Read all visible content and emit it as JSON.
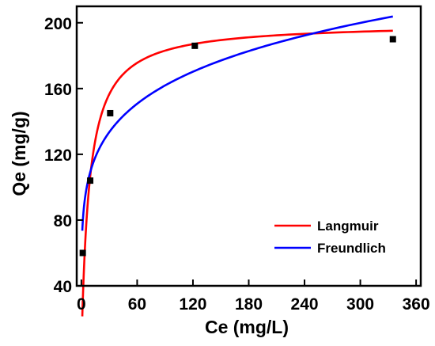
{
  "chart_data": {
    "type": "scatter",
    "xlabel": "Ce (mg/L)",
    "ylabel": "Qe (mg/g)",
    "xlim": [
      -5,
      365
    ],
    "ylim": [
      40,
      210
    ],
    "xticks": [
      0,
      60,
      120,
      180,
      240,
      300,
      360
    ],
    "yticks": [
      40,
      80,
      120,
      160,
      200
    ],
    "points": {
      "x": [
        1.5,
        9.5,
        31,
        122,
        335
      ],
      "y": [
        60,
        104,
        145,
        186,
        190
      ]
    },
    "series": [
      {
        "name": "Langmuir",
        "color": "#ff0000",
        "model": "langmuir",
        "qmax": 200,
        "KL": 0.12,
        "x_range": [
          1,
          335
        ]
      },
      {
        "name": "Freundlich",
        "color": "#0000ff",
        "model": "freundlich",
        "KF": 73.5,
        "n": 5.7,
        "x_range": [
          1,
          335
        ]
      }
    ],
    "legend_position": "bottom-right",
    "grid": false,
    "marker": "square",
    "marker_color": "#000000"
  }
}
